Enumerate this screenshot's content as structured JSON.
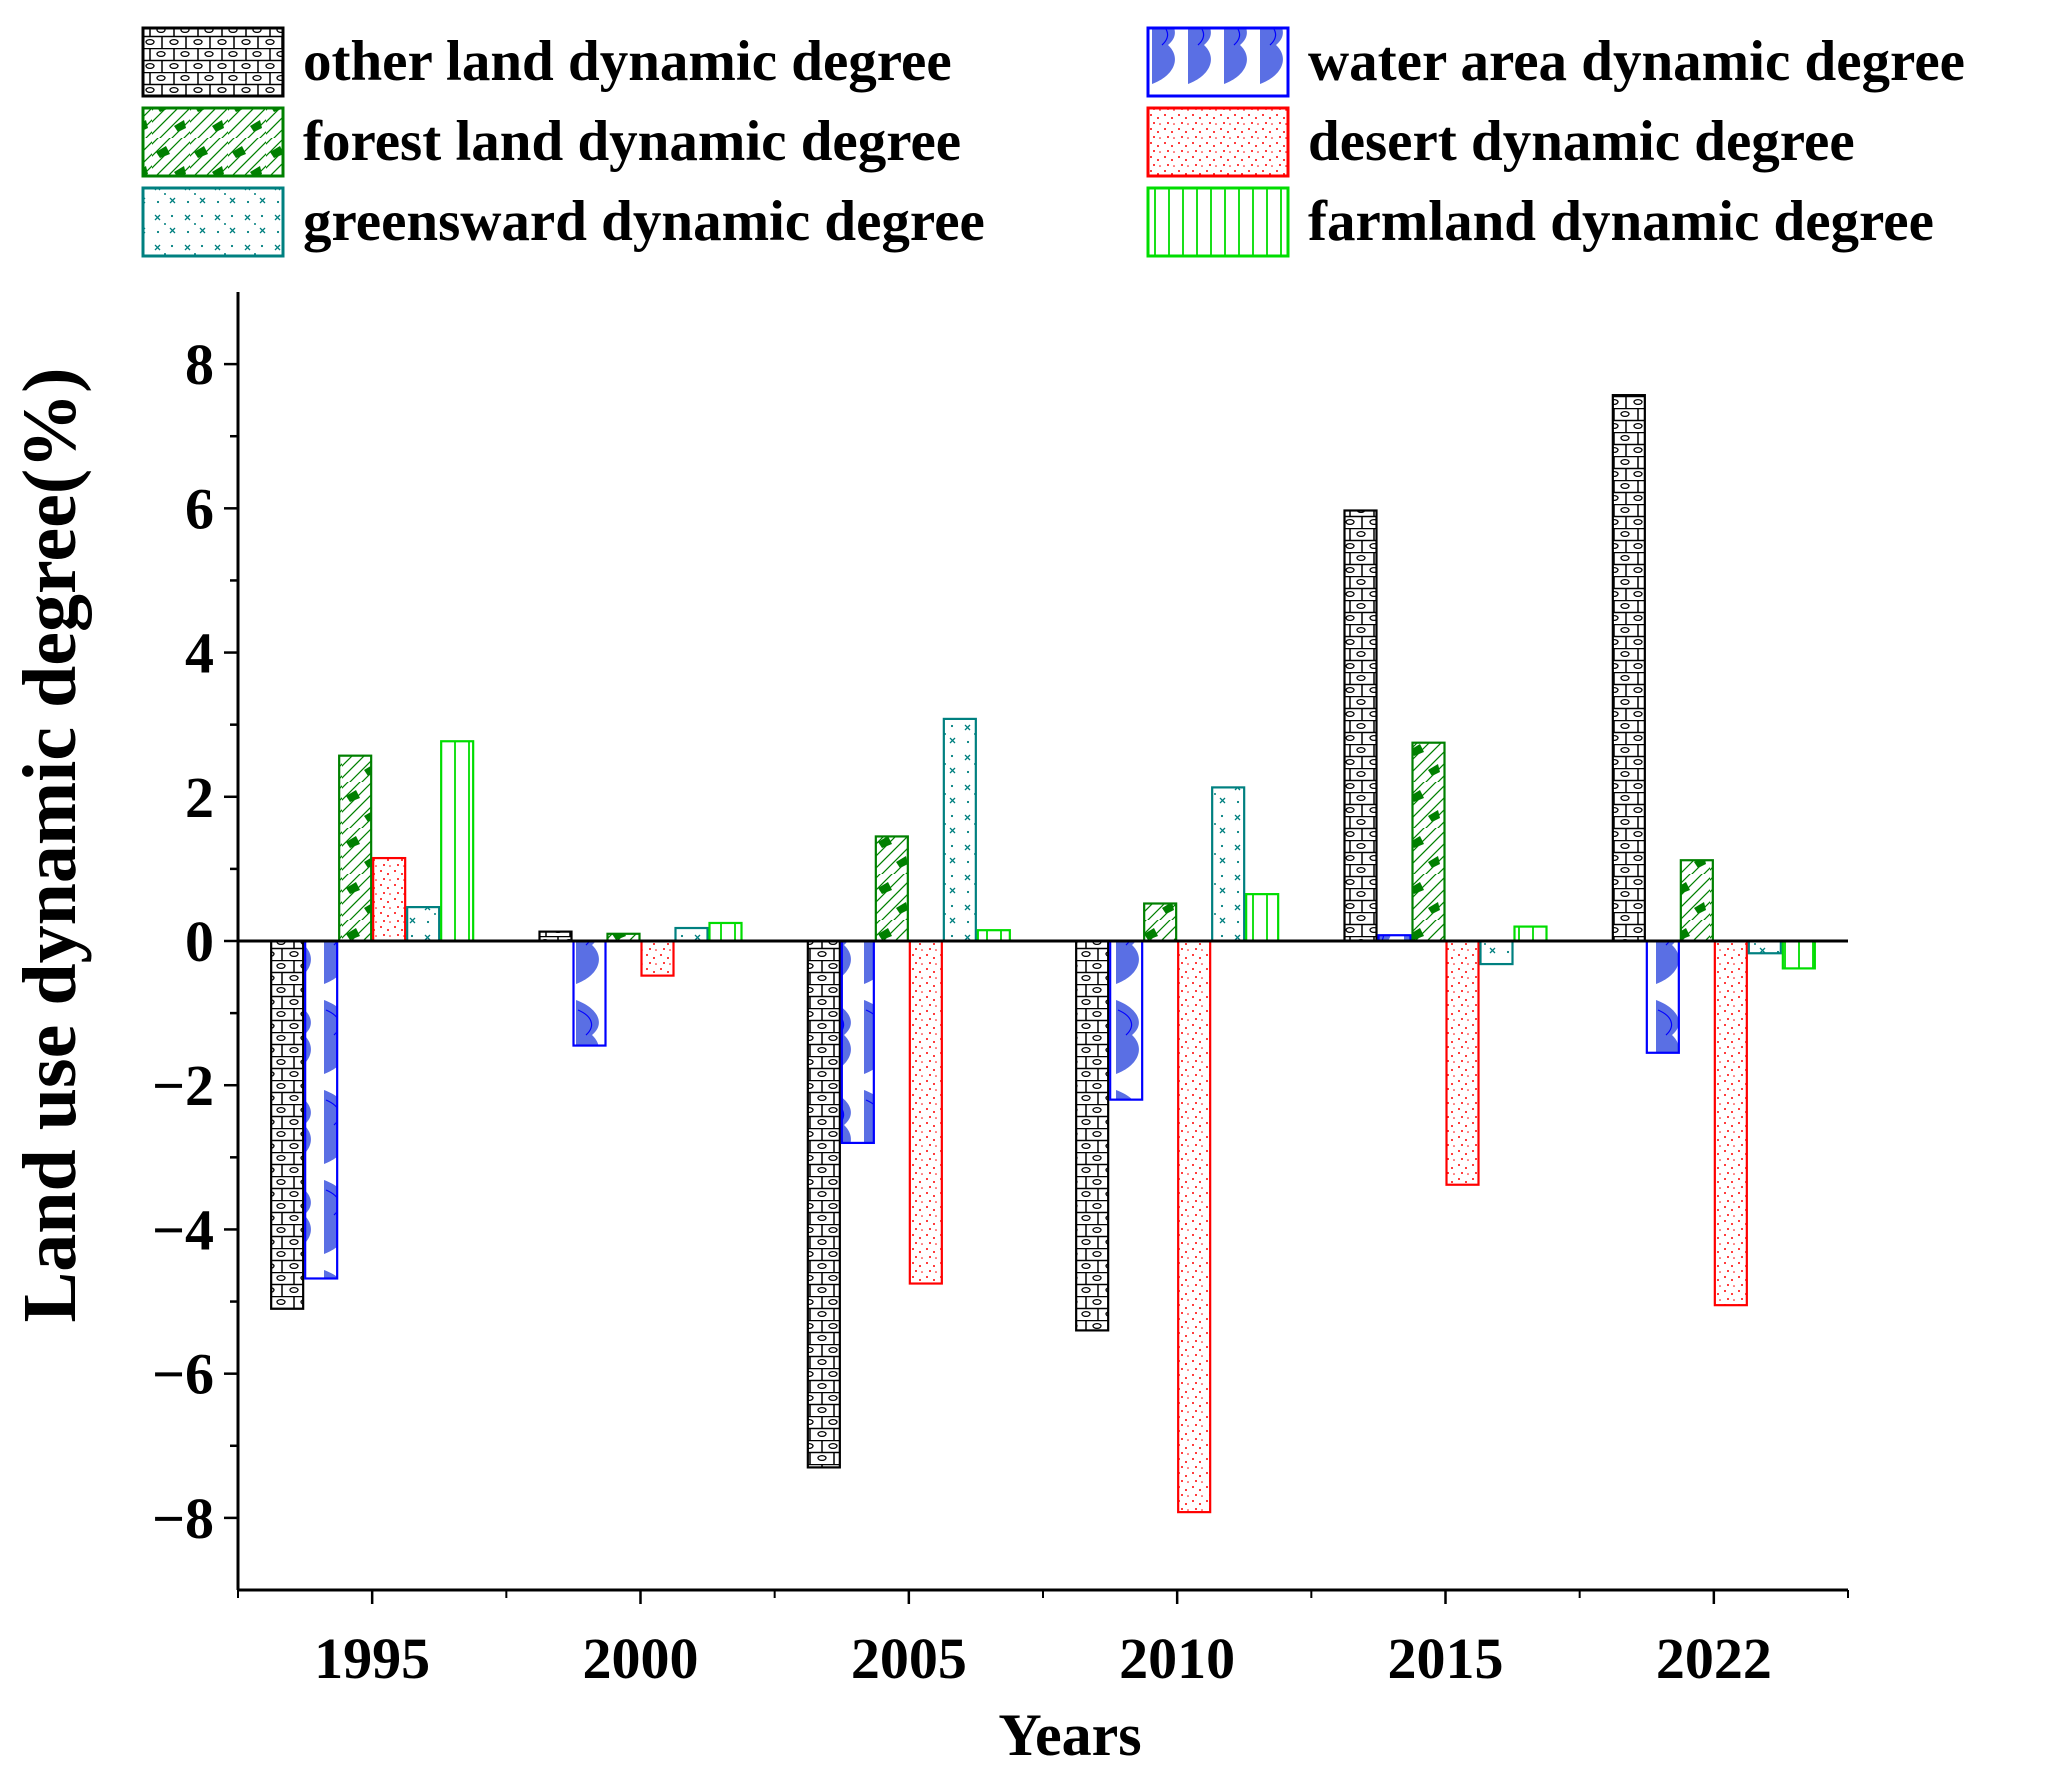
{
  "chart_data": {
    "type": "bar",
    "title": "",
    "xlabel": "Years",
    "ylabel": "Land use dynamic degree(%)",
    "categories": [
      "1995",
      "2000",
      "2005",
      "2010",
      "2015",
      "2022"
    ],
    "ylim": [
      -9,
      9
    ],
    "yticks": [
      -8,
      -6,
      -4,
      -2,
      0,
      2,
      4,
      6,
      8
    ],
    "ytick_labels": [
      "−8",
      "−6",
      "−4",
      "−2",
      "0",
      "2",
      "4",
      "6",
      "8"
    ],
    "series": [
      {
        "name": "other land dynamic degree",
        "color": "#000000",
        "pattern": "brick",
        "values": [
          -5.1,
          0.13,
          -7.3,
          -5.4,
          5.97,
          7.57
        ]
      },
      {
        "name": "water area dynamic degree",
        "color": "#0000ff",
        "pattern": "wave",
        "values": [
          -4.68,
          -1.45,
          -2.8,
          -2.2,
          0.08,
          -1.55
        ]
      },
      {
        "name": "forest land dynamic degree",
        "color": "#008000",
        "pattern": "hatch",
        "values": [
          2.57,
          0.1,
          1.45,
          0.52,
          2.75,
          1.12
        ]
      },
      {
        "name": "desert dynamic degree",
        "color": "#ff0000",
        "pattern": "dots",
        "values": [
          1.15,
          -0.48,
          -4.75,
          -7.92,
          -3.38,
          -5.05
        ]
      },
      {
        "name": "greensward dynamic degree",
        "color": "#008080",
        "pattern": "cross",
        "values": [
          0.47,
          0.18,
          3.08,
          2.13,
          -0.32,
          -0.17
        ]
      },
      {
        "name": "farmland dynamic degree",
        "color": "#00dd00",
        "pattern": "vlines",
        "values": [
          2.77,
          0.25,
          0.15,
          0.65,
          0.2,
          -0.38
        ]
      }
    ],
    "legend": {
      "position": "top",
      "columns": 2
    }
  }
}
